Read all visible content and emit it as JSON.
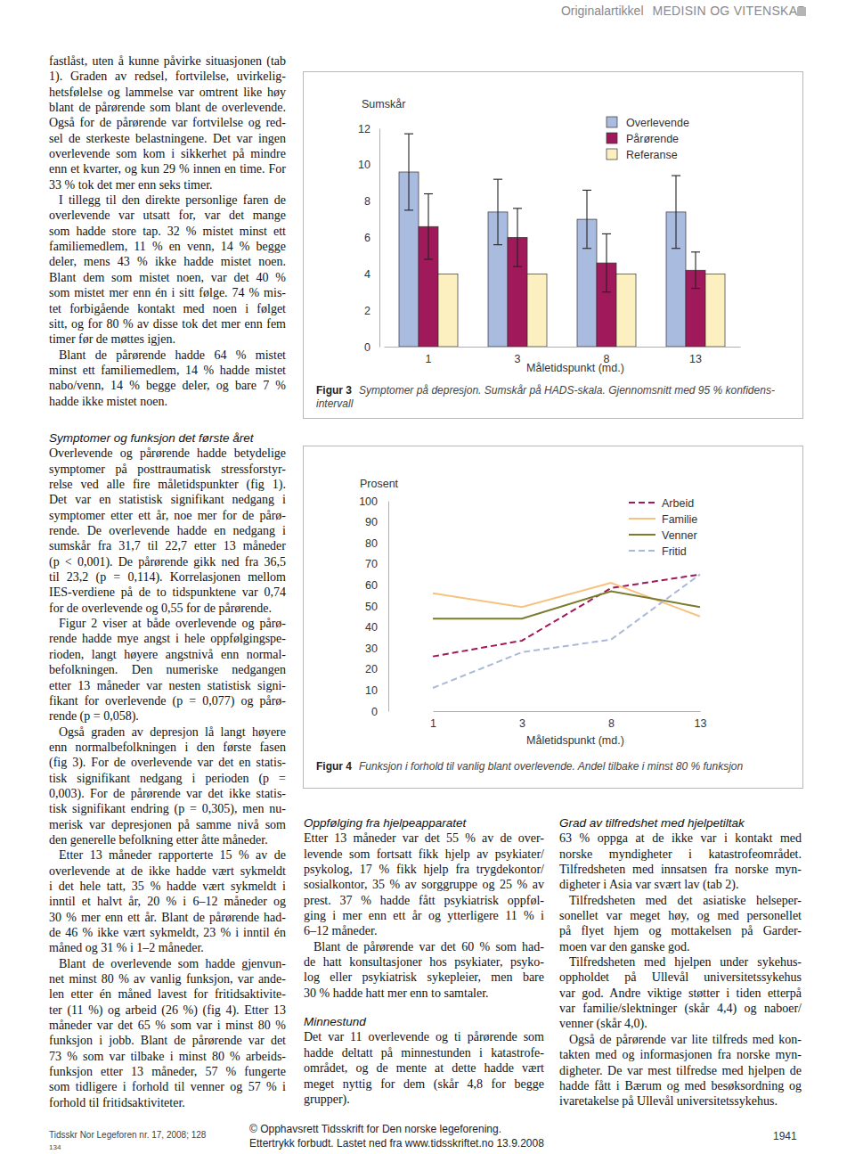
{
  "header": {
    "section": "Originalartikkel",
    "title": "MEDISIN OG VITENSKAP"
  },
  "columns": {
    "left_top": [
      {
        "paragraphs": [
          [
            "fastlåst, uten å kunne påvirke situasjonen (tab",
            "1). Graden av redsel, fortvilelse, uvirkelig-",
            "hetsfølelse og lammelse var omtrent like høy",
            "blant de pårørende som blant de overlevende.",
            "Også for de pårørende var fortvilelse og red-",
            "sel de sterkeste belastningene. Det var ingen",
            "overlevende som kom i sikkerhet på mindre",
            "enn et kvarter, og kun 29 % innen en time. For",
            "33 % tok det mer enn seks timer."
          ],
          [
            "I tillegg til den direkte personlige faren de",
            "overlevende var utsatt for, var det mange",
            "som hadde store tap. 32 % mistet minst ett",
            "familiemedlem, 11 % en venn, 14 % begge",
            "deler, mens 43 % ikke hadde mistet noen.",
            "Blant dem som mistet noen, var det 40 %",
            "som mistet mer enn én i sitt følge. 74 % mis-",
            "tet forbigående kontakt med noen i følget",
            "sitt, og for 80 % av disse tok det mer enn fem",
            "timer før de møttes igjen."
          ],
          [
            "Blant de pårørende hadde 64 % mistet",
            "minst ett familiemedlem, 14 % hadde mistet",
            "nabo/venn, 14 % begge deler, og bare 7 %",
            "hadde ikke mistet noen."
          ]
        ]
      }
    ],
    "left_bottom": [
      {
        "heading": "Symptomer og funksjon det første året",
        "paragraphs": [
          [
            "Overlevende og pårørende hadde betydelige",
            "symptomer på posttraumatisk stressforstyr-",
            "relse ved alle fire måletidspunkter (fig 1).",
            "Det var en statistisk signifikant nedgang i",
            "symptomer etter ett år, noe mer for de pårø-",
            "rende. De overlevende hadde en nedgang i",
            "sumskår fra 31,7 til 22,7 etter 13 måneder",
            "(p < 0,001). De pårørende gikk ned fra 36,5",
            "til 23,2 (p = 0,114). Korrelasjonen mellom",
            "IES-verdiene på de to tidspunktene var 0,74",
            "for de overlevende og 0,55 for de pårørende."
          ],
          [
            "Figur 2 viser at både overlevende og pårø-",
            "rende hadde mye angst i hele oppfølgingspe-",
            "rioden, langt høyere angstnivå enn normal-",
            "befolkningen. Den numeriske nedgangen",
            "etter 13 måneder var nesten statistisk signi-",
            "fikant for overlevende (p = 0,077) og pårø-",
            "rende (p = 0,058)."
          ],
          [
            "Også graden av depresjon lå langt høyere",
            "enn normalbefolkningen i den første fasen",
            "(fig 3). For de overlevende var det en statis-",
            "tisk signifikant nedgang i perioden (p =",
            "0,003). For de pårørende var det ikke statis-",
            "tisk signifikant endring (p = 0,305), men nu-",
            "merisk var depresjonen på samme nivå som",
            "den generelle befolkning etter åtte måneder."
          ],
          [
            "Etter 13 måneder rapporterte 15 % av de",
            "overlevende at de ikke hadde vært sykmeldt",
            "i det hele tatt, 35 % hadde vært sykmeldt i",
            "inntil et halvt år, 20 % i 6–12 måneder og",
            "30 % mer enn ett år. Blant de pårørende had-",
            "de 46 % ikke vært sykmeldt, 23 % i inntil én",
            "måned og 31 % i 1–2 måneder."
          ],
          [
            "Blant de overlevende som hadde gjenvun-",
            "net minst 80 % av vanlig funksjon, var ande-",
            "len etter én måned lavest for fritidsaktivite-",
            "ter (11 %) og arbeid (26 %) (fig 4). Etter 13",
            "måneder var det 65 % som var i minst 80 %",
            "funksjon i jobb. Blant de pårørende var det",
            "73 % som var tilbake i minst 80 % arbeids-",
            "funksjon etter 13 måneder, 57 % fungerte",
            "som tidligere i forhold til venner og 57 % i",
            "forhold til fritidsaktiviteter."
          ]
        ]
      }
    ],
    "middle": [
      {
        "heading": "Oppfølging fra hjelpeapparatet",
        "paragraphs": [
          [
            "Etter 13 måneder var det 55 % av de over-",
            "levende som fortsatt fikk hjelp av psykiater/",
            "psykolog, 17 % fikk hjelp fra trygdekontor/",
            "sosialkontor, 35 % av sorggruppe og 25 % av",
            "prest. 37 % hadde fått psykiatrisk oppføl-",
            "ging i mer enn ett år og ytterligere 11 % i",
            "6–12 måneder."
          ],
          [
            "Blant de pårørende var det 60 % som had-",
            "de hatt konsultasjoner hos psykiater, psyko-",
            "log eller psykiatrisk sykepleier, men bare",
            "30 % hadde hatt mer enn to samtaler."
          ]
        ]
      },
      {
        "heading": "Minnestund",
        "paragraphs": [
          [
            "Det var 11 overlevende og ti pårørende som",
            "hadde deltatt på minnestunden i katastrofe-",
            "området, og de mente at dette hadde vært",
            "meget nyttig for dem (skår 4,8 for begge",
            "grupper)."
          ]
        ]
      }
    ],
    "right": [
      {
        "heading": "Grad av tilfredshet med hjelpetiltak",
        "paragraphs": [
          [
            "63 % oppga at de ikke var i kontakt med",
            "norske myndigheter i katastrofeområdet.",
            "Tilfredsheten med innsatsen fra norske myn-",
            "digheter i Asia var svært lav (tab 2)."
          ],
          [
            "Tilfredsheten med det asiatiske helseper-",
            "sonellet var meget høy, og med personellet",
            "på flyet hjem og mottakelsen på Garder-",
            "moen var den ganske god."
          ],
          [
            "Tilfredsheten med hjelpen under sykehus-",
            "oppholdet på Ullevål universitetssykehus",
            "var god. Andre viktige støtter i tiden etterpå",
            "var familie/slektninger (skår 4,4) og naboer/",
            "venner (skår 4,0)."
          ],
          [
            "Også de pårørende var lite tilfreds med kon-",
            "takten med og informasjonen fra norske myn-",
            "digheter. De var mest tilfredse med hjelpen de",
            "hadde fått i Bærum og med besøksordning og",
            "ivaretakelse på Ullevål universitetssykehus."
          ]
        ]
      }
    ]
  },
  "chart_data": [
    {
      "type": "bar",
      "title": "Figur 3",
      "caption": [
        "Symptomer på depresjon. Sumskår på HADS-skala. Gjennomsnitt med 95 % konfidens-",
        "intervall"
      ],
      "y_label": "Sumskår",
      "x_label": "Måletidspunkt (md.)",
      "categories": [
        "1",
        "3",
        "8",
        "13"
      ],
      "series": [
        {
          "name": "Overlevende",
          "color": "#a9bbdf",
          "values": [
            9.6,
            7.4,
            7.0,
            7.4
          ],
          "errors": [
            2.1,
            1.8,
            1.6,
            2.0
          ]
        },
        {
          "name": "Pårørende",
          "color": "#a0195a",
          "values": [
            6.6,
            6.0,
            4.6,
            4.2
          ],
          "errors": [
            1.8,
            1.6,
            1.6,
            1.0
          ]
        },
        {
          "name": "Referanse",
          "color": "#fcefc0",
          "values": [
            4.0,
            4.0,
            4.0,
            4.0
          ]
        }
      ],
      "ylim": [
        0,
        12
      ],
      "yticks": [
        0,
        2,
        4,
        6,
        8,
        10,
        12
      ],
      "legend": "upper right"
    },
    {
      "type": "line",
      "title": "Figur 4",
      "caption": [
        "Funksjon i forhold til vanlig blant overlevende. Andel tilbake i minst 80 % funksjon"
      ],
      "y_label": "Prosent",
      "x_label": "Måletidspunkt (md.)",
      "categories": [
        "1",
        "3",
        "8",
        "13"
      ],
      "series": [
        {
          "name": "Arbeid",
          "color": "#a0195a",
          "line_style": "dashed",
          "values": [
            26,
            33.5,
            58.5,
            65
          ]
        },
        {
          "name": "Familie",
          "color": "#f6c27e",
          "line_style": "solid",
          "values": [
            56,
            49.5,
            61,
            45
          ]
        },
        {
          "name": "Venner",
          "color": "#7b7b2e",
          "line_style": "solid",
          "values": [
            44,
            44,
            57,
            49.5
          ]
        },
        {
          "name": "Fritid",
          "color": "#a9b9d9",
          "line_style": "dashed",
          "values": [
            11,
            28,
            34,
            65
          ]
        }
      ],
      "ylim": [
        0,
        100
      ],
      "yticks": [
        0,
        10,
        20,
        30,
        40,
        50,
        60,
        70,
        80,
        90,
        100
      ],
      "legend": "upper right"
    }
  ],
  "footer": {
    "journal": "Tidsskr Nor Legeforen nr. 17, 2008; 128",
    "page_small": "134",
    "copyright": [
      "© Opphavsrett Tidsskrift for Den norske legeforening.",
      "Ettertrykk forbudt. Lastet ned fra www.tidsskriftet.no 13.9.2008"
    ],
    "page": "1941"
  }
}
